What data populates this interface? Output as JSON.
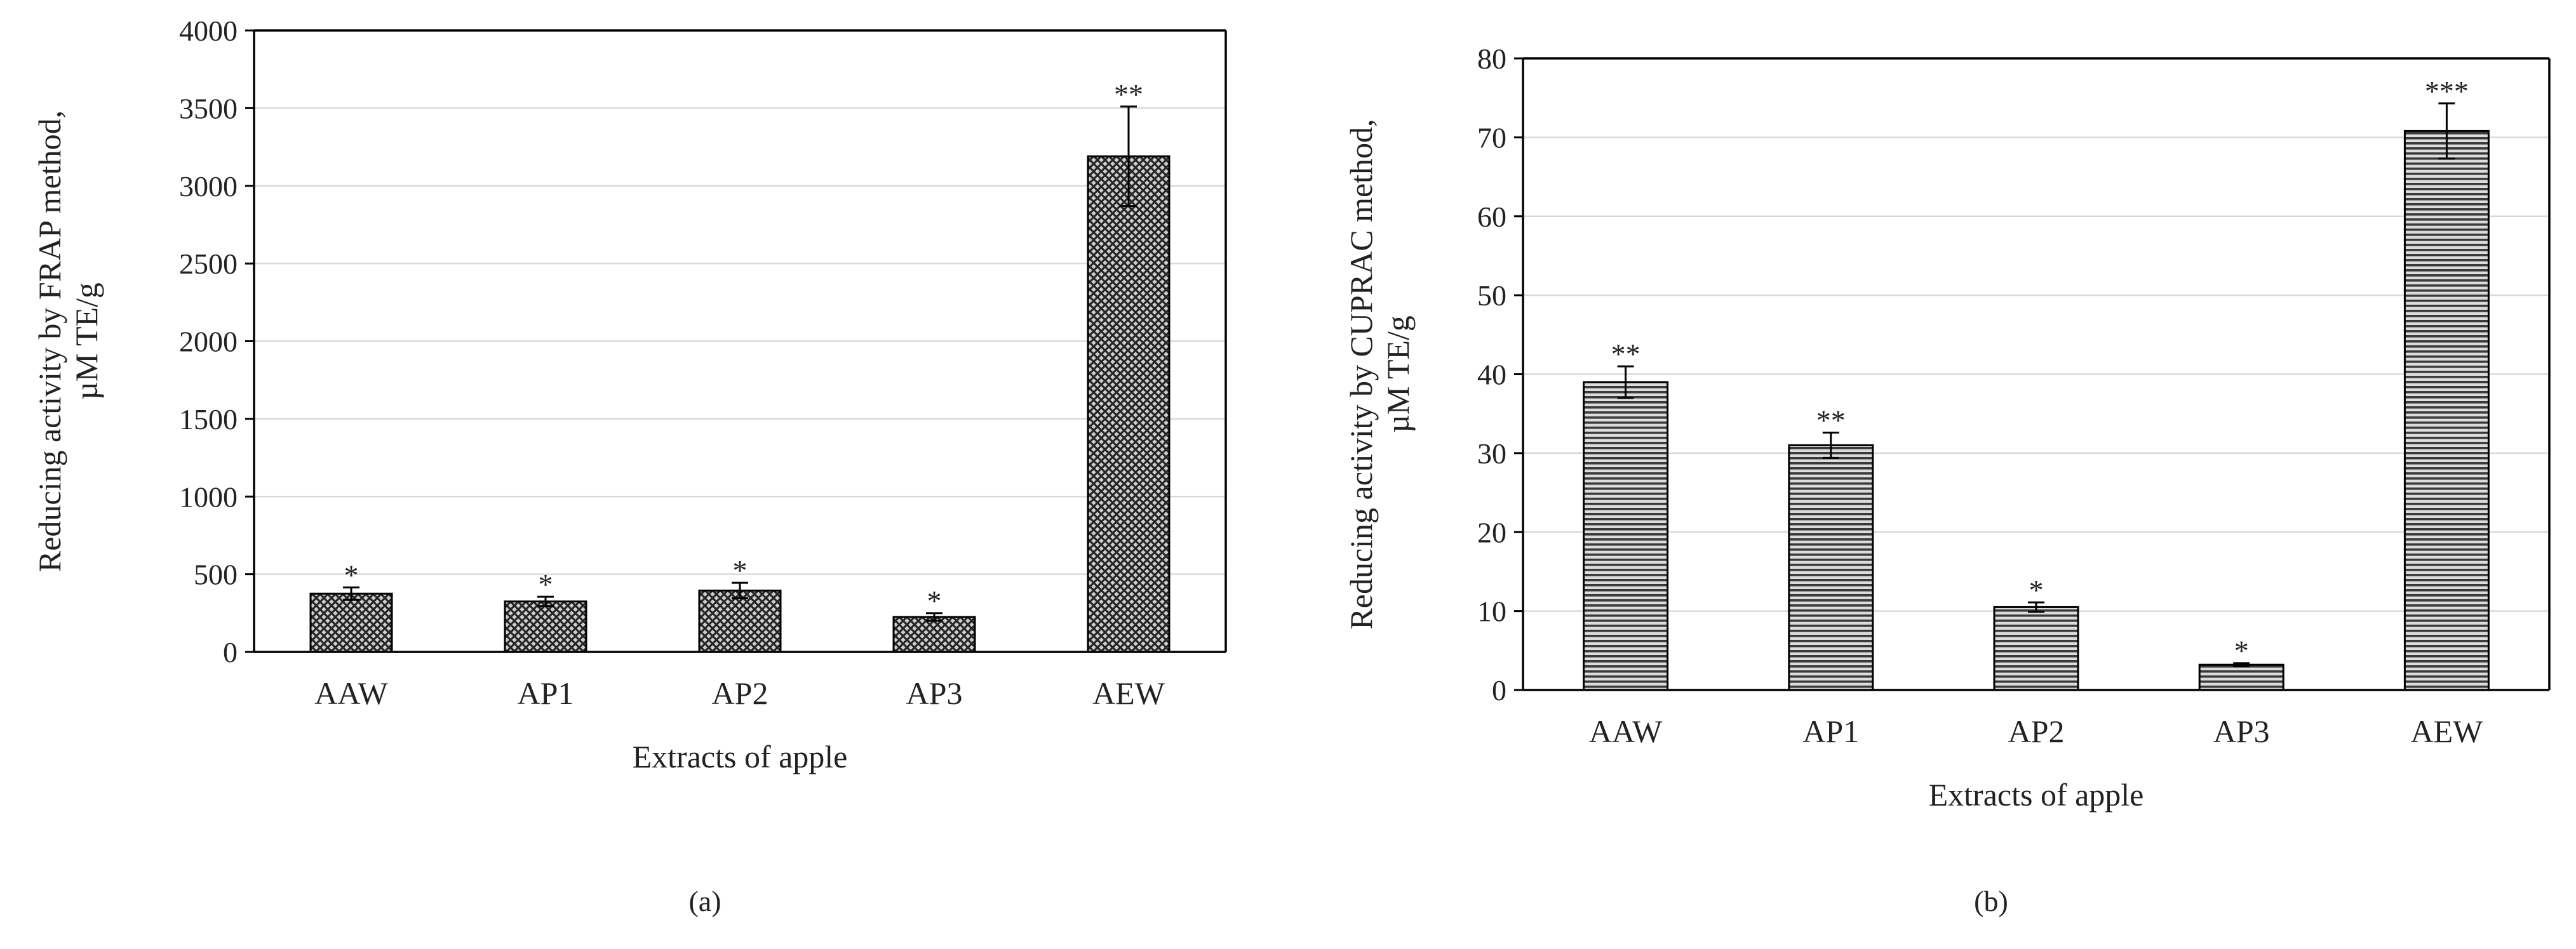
{
  "figure": {
    "panel_labels": [
      "(a)",
      "(b)"
    ]
  },
  "colors": {
    "bar_fill": "#d0d0d0",
    "bar_pattern": "#262626",
    "axis": "#000000",
    "gridline": "#d9d9d9",
    "text": "#222222"
  },
  "chart_data": [
    {
      "type": "bar",
      "title": "",
      "xlabel": "Extracts of apple",
      "ylabel_lines": [
        "Reducing activity  by FRAP method,",
        "µM TE/g"
      ],
      "categories": [
        "AAW",
        "AP1",
        "AP2",
        "AP3",
        "AEW"
      ],
      "values": [
        375,
        325,
        395,
        225,
        3190
      ],
      "errors": [
        40,
        30,
        50,
        25,
        320
      ],
      "significance": [
        "*",
        "*",
        "*",
        "*",
        "**"
      ],
      "ylim": [
        0,
        4000
      ],
      "yticks": [
        0,
        500,
        1000,
        1500,
        2000,
        2500,
        3000,
        3500,
        4000
      ],
      "grid": true,
      "pattern": "crosshatch"
    },
    {
      "type": "bar",
      "title": "",
      "xlabel": "Extracts of apple",
      "ylabel_lines": [
        "Reducing activity  by CUPRAC method,",
        "µM TE/g"
      ],
      "categories": [
        "AAW",
        "AP1",
        "AP2",
        "AP3",
        "AEW"
      ],
      "values": [
        39,
        31,
        10.5,
        3.2,
        70.8
      ],
      "errors": [
        2.0,
        1.6,
        0.6,
        0.2,
        3.5
      ],
      "significance": [
        "**",
        "**",
        "*",
        "*",
        "***"
      ],
      "ylim": [
        0,
        80
      ],
      "yticks": [
        0,
        10,
        20,
        30,
        40,
        50,
        60,
        70,
        80
      ],
      "grid": true,
      "pattern": "horizontal"
    }
  ]
}
